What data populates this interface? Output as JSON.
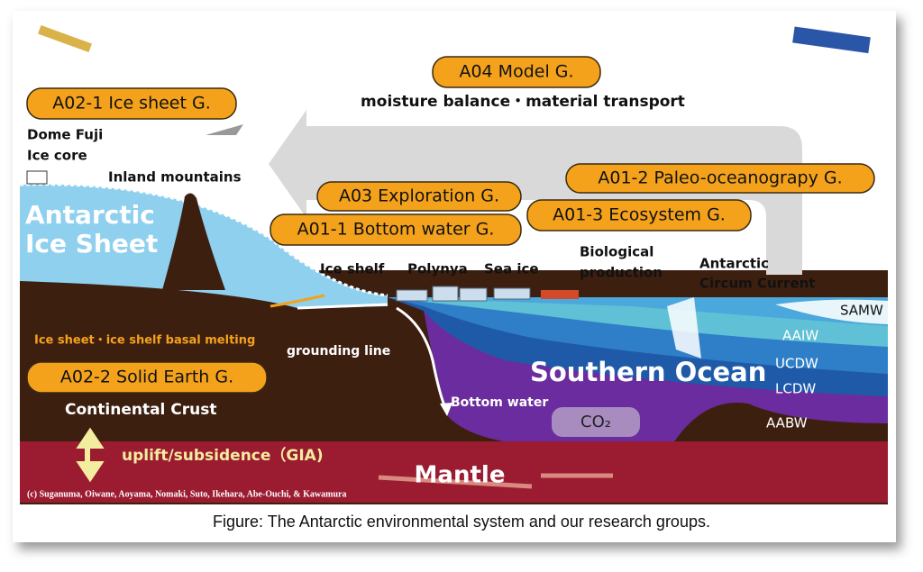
{
  "groups": [
    {
      "label": "A04 Model G."
    },
    {
      "label": "A02-1 Ice sheet G."
    },
    {
      "label": "A03 Exploration G."
    },
    {
      "label": "A01-1 Bottom water G."
    },
    {
      "label": "A01-2 Paleo-oceanograpy G."
    },
    {
      "label": "A01-3 Ecosystem G."
    },
    {
      "label": "A02-2 Solid Earth G."
    }
  ],
  "labels": {
    "moisture": "moisture balance・material transport",
    "dome_fuji": "Dome Fuji",
    "ice_core": "Ice core",
    "inland_mountains": "Inland mountains",
    "ice_sheet_1": "Antarctic",
    "ice_sheet_2": "Ice Sheet",
    "ice_shelf": "Ice shelf",
    "polynya": "Polynya",
    "sea_ice": "Sea ice",
    "bio_1": "Biological",
    "bio_2": "production",
    "acc_1": "Antarctic",
    "acc_2": "Circum Current",
    "samw": "SAMW",
    "aaiw": "AAIW",
    "ucdw": "UCDW",
    "lcdw": "LCDW",
    "aabw": "AABW",
    "southern_ocean": "Southern Ocean",
    "basal_melting": "Ice sheet・ice shelf basal melting",
    "grounding_line": "grounding line",
    "bottom_water": "Bottom water",
    "co2": "CO₂",
    "continental_crust": "Continental Crust",
    "uplift": "uplift/subsidence（GIA)",
    "mantle": "Mantle",
    "copyright": "(c) Suganuma, Oiwane, Aoyama, Nomaki, Suto, Ikehara, Abe-Ouchi, & Kawamura"
  },
  "caption": "Figure: The Antarctic environmental system and our research groups."
}
